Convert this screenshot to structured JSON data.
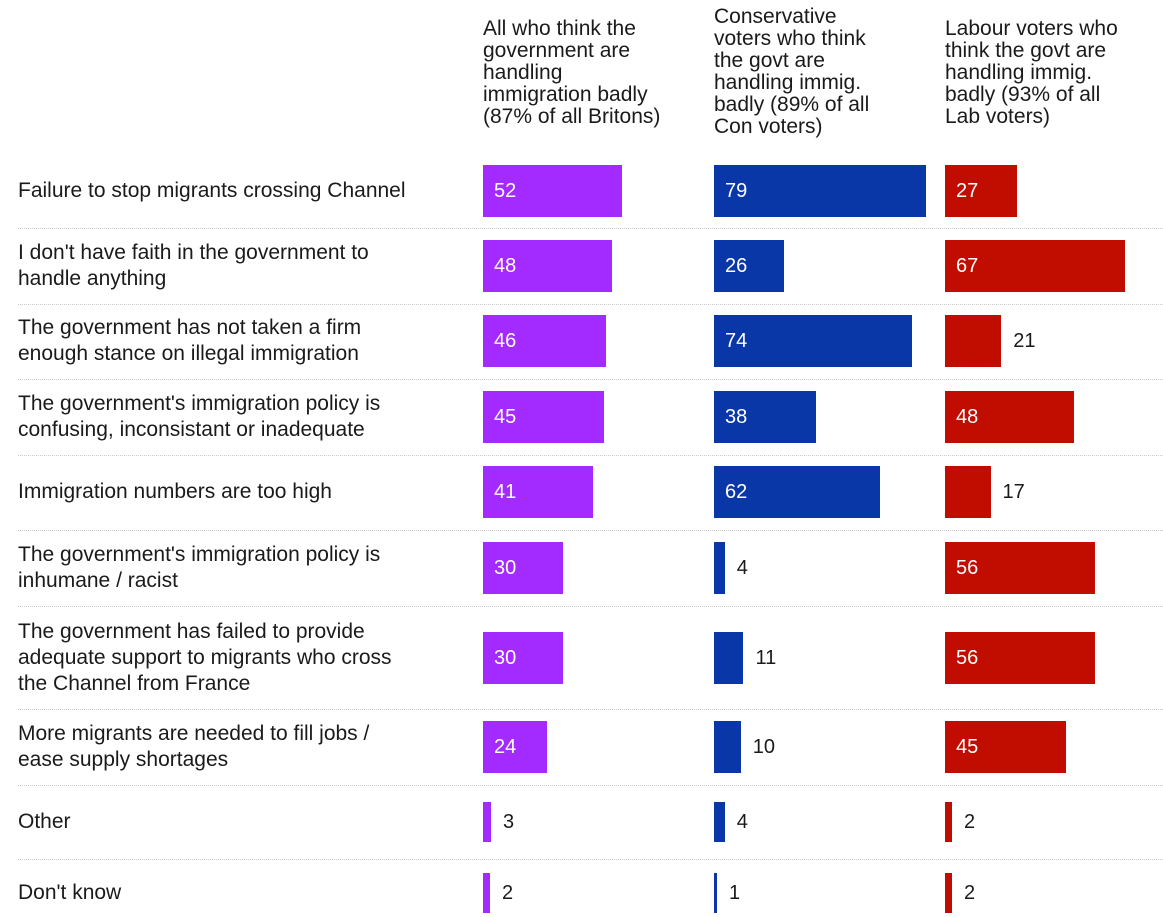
{
  "chart_data": {
    "type": "bar",
    "orientation": "horizontal",
    "categories": [
      "Failure to stop migrants crossing Channel",
      "I don't have faith in the government to handle anything",
      "The government has not taken a firm enough stance on illegal immigration",
      "The government's immigration policy is confusing, inconsistant or inadequate",
      "Immigration numbers are too high",
      "The government's immigration policy is inhumane / racist",
      "The government has failed to provide adequate support to migrants who cross the Channel from France",
      "More migrants are needed to fill jobs / ease supply shortages",
      "Other",
      "Don't know"
    ],
    "series": [
      {
        "name": "All who think the government are handling immigration badly (87% of all Britons)",
        "color": "#a42bff",
        "values": [
          52,
          48,
          46,
          45,
          41,
          30,
          30,
          24,
          3,
          2
        ]
      },
      {
        "name": "Conservative voters who think the govt are handling immig. badly (89% of all Con voters)",
        "color": "#0a37a8",
        "values": [
          79,
          26,
          74,
          38,
          62,
          4,
          11,
          10,
          4,
          1
        ]
      },
      {
        "name": "Labour voters who think the govt are handling immig. badly (93% of all Lab voters)",
        "color": "#c10c00",
        "values": [
          27,
          67,
          21,
          48,
          17,
          56,
          56,
          45,
          2,
          2
        ]
      }
    ],
    "xlim": [
      0,
      100
    ],
    "grid": false,
    "legend": "column headers"
  }
}
